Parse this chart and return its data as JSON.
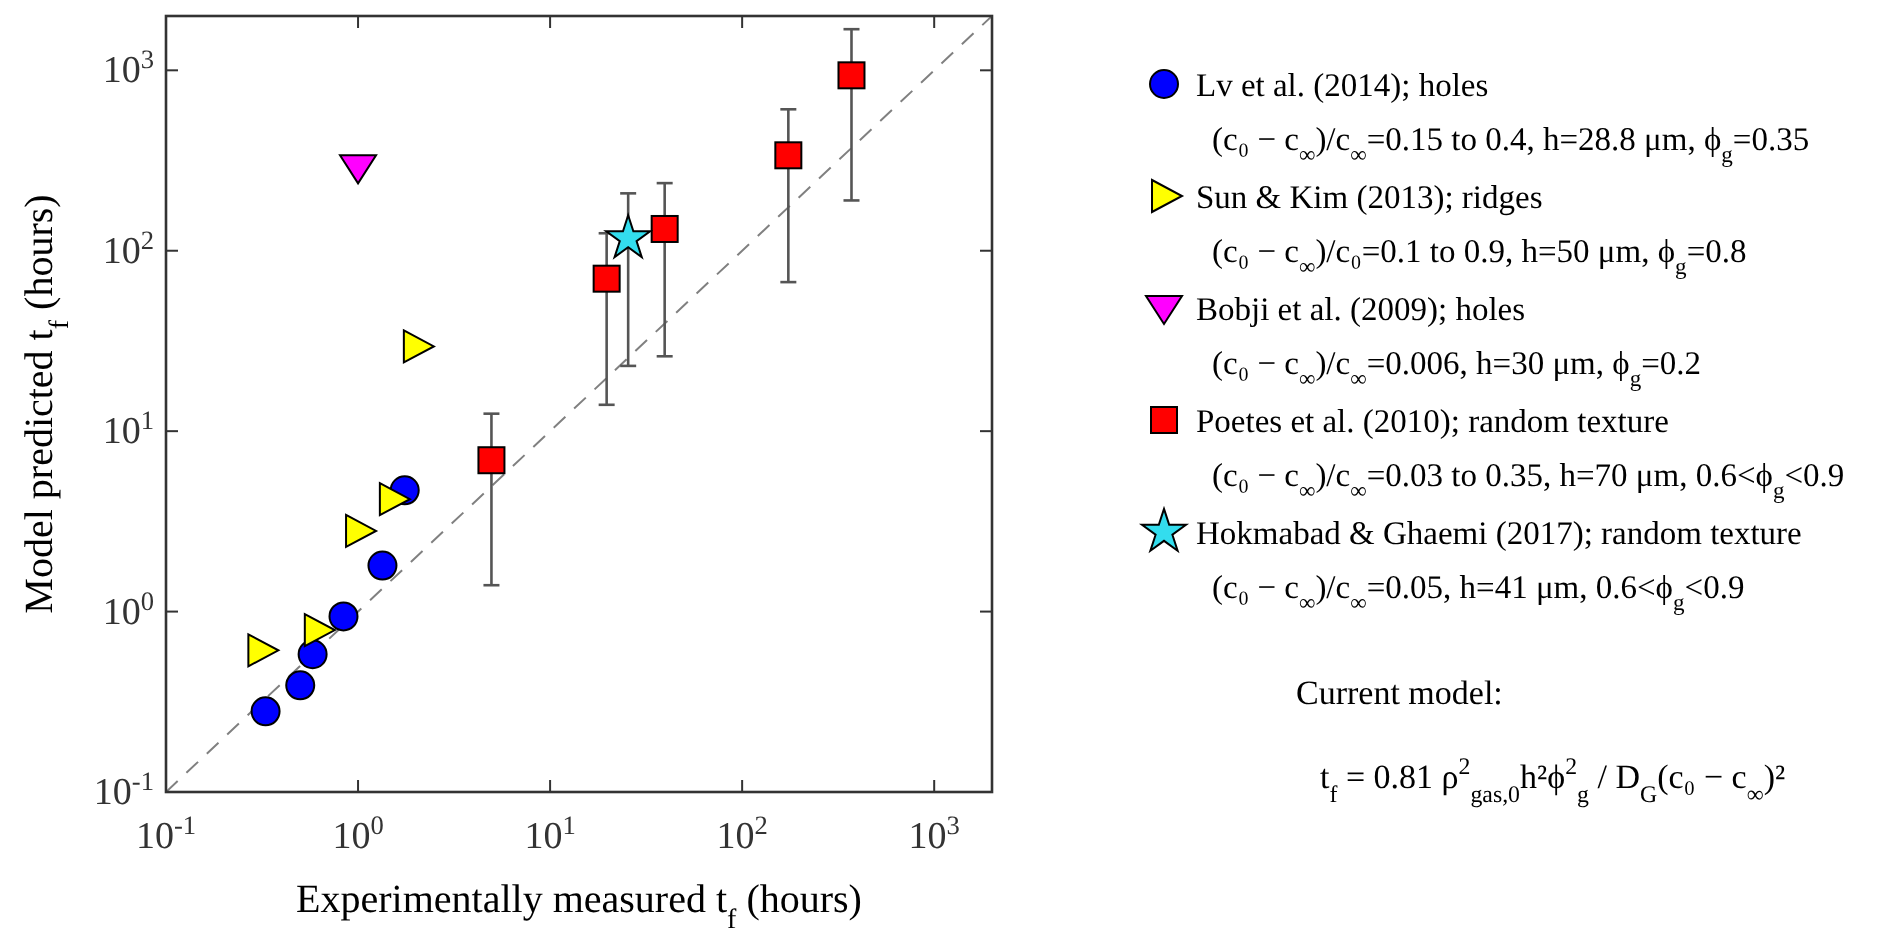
{
  "chart_data": {
    "type": "scatter",
    "xlabel": "Experimentally measured t$_{f}$ (hours)",
    "ylabel": "Model predicted t$_{f}$ (hours)",
    "log": "xy",
    "xlim": [
      0.1,
      2000
    ],
    "ylim": [
      0.1,
      2000
    ],
    "xticks": [
      {
        "value": 0.1,
        "label": "10$^{-1}$"
      },
      {
        "value": 1,
        "label": "10$^{0}$"
      },
      {
        "value": 10,
        "label": "10$^{1}$"
      },
      {
        "value": 100,
        "label": "10$^{2}$"
      },
      {
        "value": 1000,
        "label": "10$^{3}$"
      }
    ],
    "yticks": [
      {
        "value": 0.1,
        "label": "10$^{-1}$"
      },
      {
        "value": 1,
        "label": "10$^{0}$"
      },
      {
        "value": 10,
        "label": "10$^{1}$"
      },
      {
        "value": 100,
        "label": "10$^{2}$"
      },
      {
        "value": 1000,
        "label": "10$^{3}$"
      }
    ],
    "grid": false,
    "legend": "right",
    "series": [
      {
        "name": "Lv et al. (2014); holes\n(c₀ − c$_{∞}$)/c$_{∞}$=0.15 to 0.4, h=28.8 μm, ϕ$_{g}$=0.35",
        "color": "#0000ff",
        "marker": "circle",
        "x": [
          0.33,
          0.5,
          0.58,
          0.84,
          1.34,
          1.75
        ],
        "values": [
          0.28,
          0.39,
          0.58,
          0.94,
          1.8,
          4.7
        ]
      },
      {
        "name": "Sun & Kim (2013); ridges\n(c₀ − c$_{∞}$)/c₀=0.1 to 0.9, h=50 μm, ϕ$_{g}$=0.8",
        "color": "#ffff00",
        "marker": "triangle-right",
        "x": [
          0.31,
          0.61,
          1.0,
          1.5,
          2.0
        ],
        "values": [
          0.61,
          0.79,
          2.8,
          4.2,
          29.5
        ]
      },
      {
        "name": "Bobji et al. (2009); holes\n(c₀ − c$_{∞}$)/c$_{∞}$=0.006, h=30 μm, ϕ$_{g}$=0.2",
        "color": "#ff00ff",
        "marker": "triangle-down",
        "x": [
          1.0
        ],
        "values": [
          290
        ]
      },
      {
        "name": "Poetes et al. (2010); random texture\n(c₀ − c$_{∞}$)/c$_{∞}$=0.03 to 0.35, h=70 μm, 0.6<ϕ$_{g}$<0.9",
        "color": "#ff0000",
        "marker": "square",
        "x": [
          4.95,
          19.7,
          39.5,
          174,
          371
        ],
        "values": [
          6.9,
          70,
          132,
          338,
          938
        ],
        "errors": [
          [
            1.4,
            12.5
          ],
          [
            14,
            125
          ],
          [
            26,
            237
          ],
          [
            67,
            608
          ],
          [
            190,
            1690
          ]
        ]
      },
      {
        "name": "Hokmabad & Ghaemi (2017); random texture\n(c₀ − c$_{∞}$)/c$_{∞}$=0.05, h=41 μm, 0.6<ϕ$_{g}$<0.9",
        "color": "#33ddee",
        "marker": "star",
        "x": [
          25.5
        ],
        "values": [
          117
        ],
        "errors": [
          [
            23,
            208
          ]
        ]
      },
      {
        "type": "line",
        "color": "#808080",
        "line_style": "dashed",
        "x": [
          0.1,
          2000
        ],
        "values": [
          0.1,
          2000
        ]
      }
    ],
    "annotations": [
      "Current model:",
      "t$_{f}$ = 0.81 ρ$^{2}$$_{gas,0}$h²ϕ$^{2}$$_{g}$ / D$_{G}$(c₀ − c$_{∞}$)²"
    ]
  }
}
